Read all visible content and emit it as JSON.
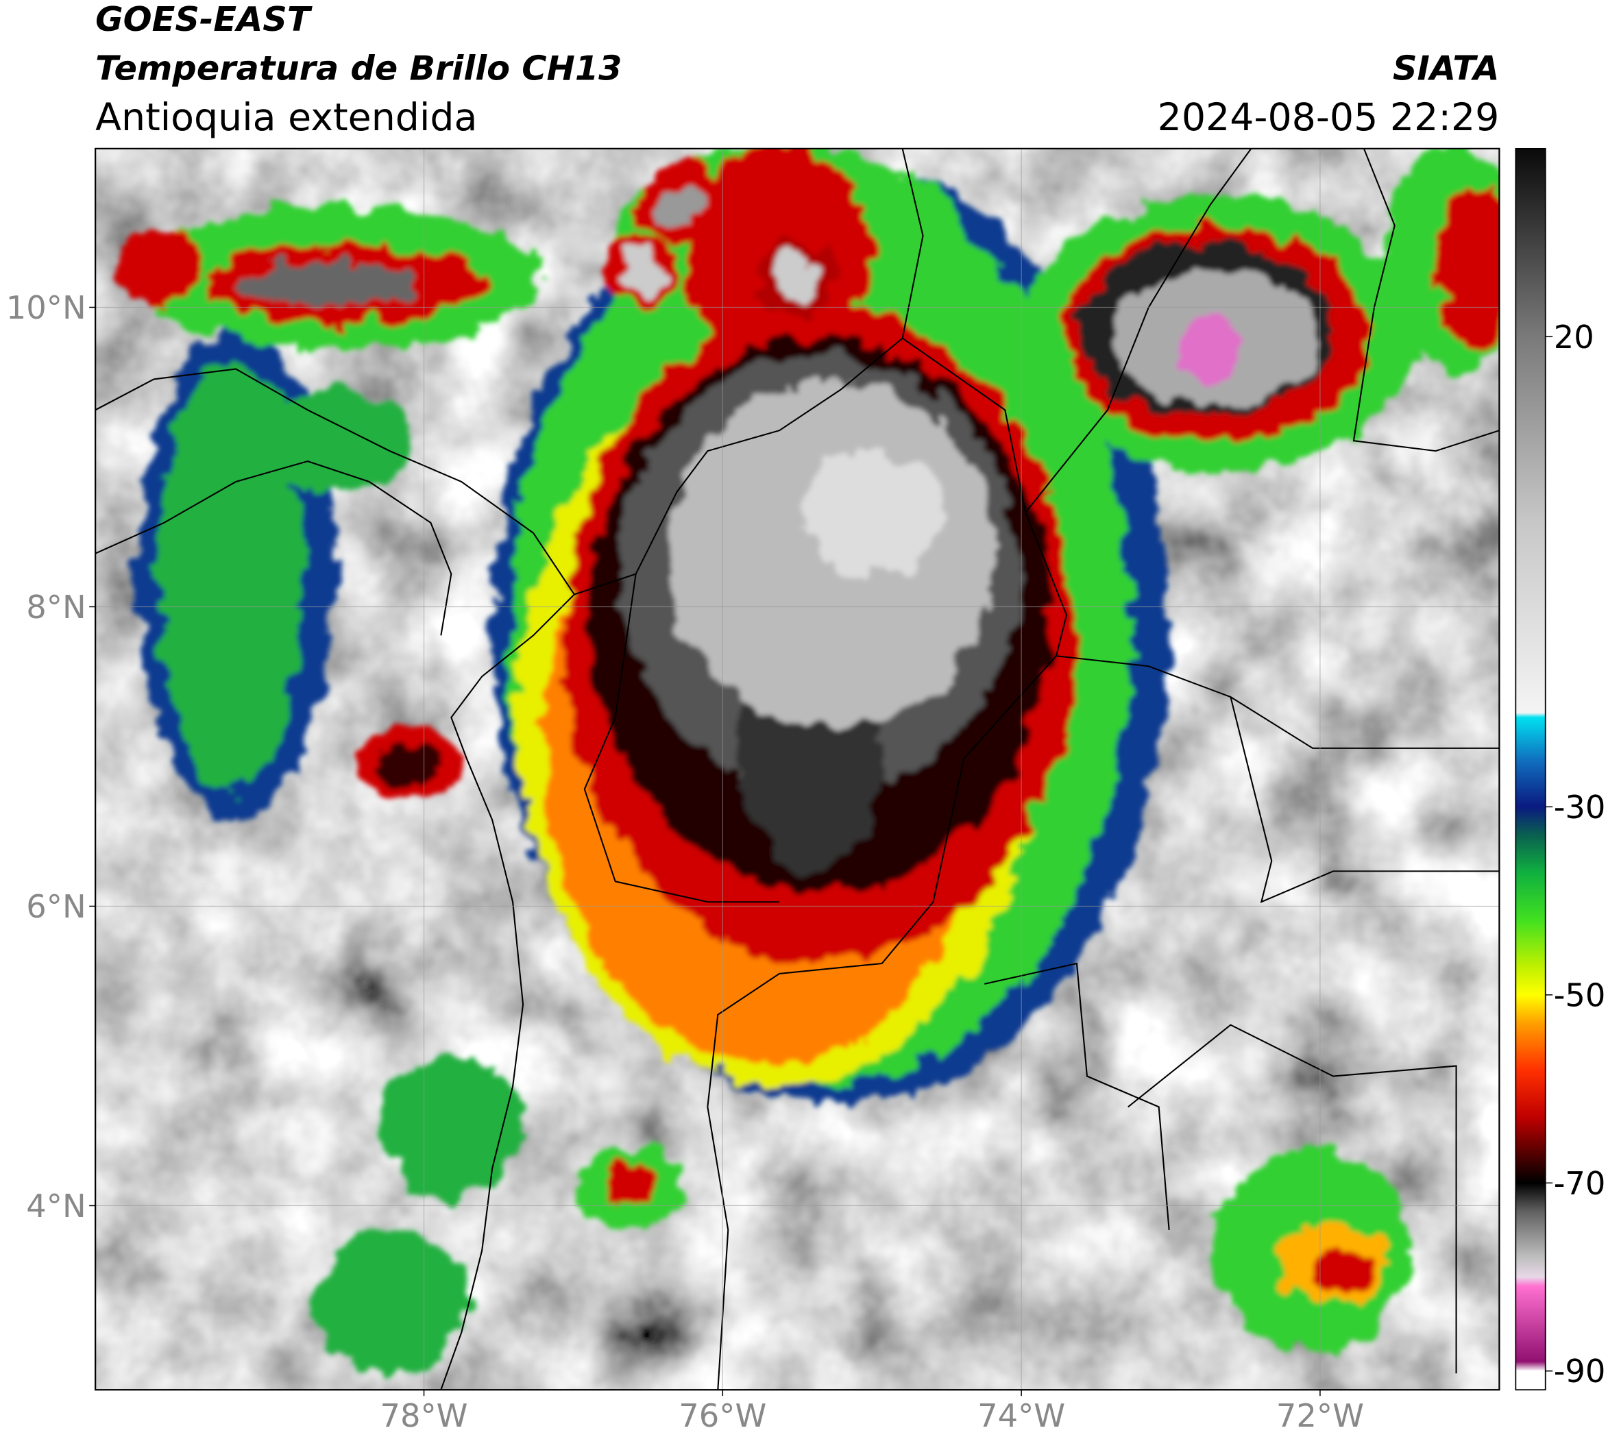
{
  "header": {
    "title": "GOES-EAST",
    "subtitle": "Temperatura de Brillo CH13",
    "region": "Antioquia extendida",
    "source": "SIATA",
    "datetime": "2024-08-05 22:29"
  },
  "map": {
    "lon_range": [
      -80.2,
      -70.8
    ],
    "lat_range": [
      2.77,
      11.06
    ],
    "grid": true,
    "lon_ticks": [
      {
        "value": -78,
        "label": "78°W"
      },
      {
        "value": -76,
        "label": "76°W"
      },
      {
        "value": -74,
        "label": "74°W"
      },
      {
        "value": -72,
        "label": "72°W"
      }
    ],
    "lat_ticks": [
      {
        "value": 4,
        "label": "4°N"
      },
      {
        "value": 6,
        "label": "6°N"
      },
      {
        "value": 8,
        "label": "8°N"
      },
      {
        "value": 10,
        "label": "10°N"
      }
    ]
  },
  "colorbar": {
    "range": [
      -92,
      40
    ],
    "ticks": [
      20,
      -30,
      -50,
      -70,
      -90
    ],
    "stops": [
      {
        "value": 40,
        "color": "#0a0a0a"
      },
      {
        "value": 20,
        "color": "#7a7a7a"
      },
      {
        "value": 0,
        "color": "#c8c8c8"
      },
      {
        "value": -20,
        "color": "#f4f4f4"
      },
      {
        "value": -20.5,
        "color": "#00e0f0"
      },
      {
        "value": -25,
        "color": "#1070c0"
      },
      {
        "value": -30,
        "color": "#0a1a80"
      },
      {
        "value": -33,
        "color": "#0a6050"
      },
      {
        "value": -37,
        "color": "#10b040"
      },
      {
        "value": -42,
        "color": "#40e020"
      },
      {
        "value": -47,
        "color": "#c0f000"
      },
      {
        "value": -50,
        "color": "#ffff00"
      },
      {
        "value": -53,
        "color": "#ffa000"
      },
      {
        "value": -58,
        "color": "#ff3000"
      },
      {
        "value": -63,
        "color": "#c00000"
      },
      {
        "value": -67,
        "color": "#500000"
      },
      {
        "value": -70,
        "color": "#000000"
      },
      {
        "value": -73,
        "color": "#606060"
      },
      {
        "value": -78,
        "color": "#c0c0c0"
      },
      {
        "value": -80,
        "color": "#e8d8e8"
      },
      {
        "value": -81,
        "color": "#ff70d0"
      },
      {
        "value": -89,
        "color": "#901070"
      },
      {
        "value": -90,
        "color": "#ffffff"
      },
      {
        "value": -92,
        "color": "#ffffff"
      }
    ]
  }
}
